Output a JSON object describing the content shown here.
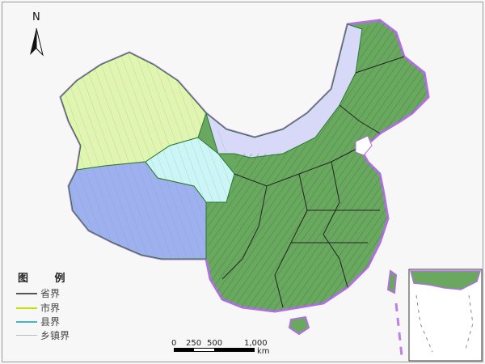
{
  "north_label": "N",
  "legend": {
    "title": "图 例",
    "items": [
      {
        "label": "省界",
        "color": "#555555"
      },
      {
        "label": "市界",
        "color": "#c8e000"
      },
      {
        "label": "县界",
        "color": "#40b8c8"
      },
      {
        "label": "乡镇界",
        "color": "#bbbbbb"
      }
    ]
  },
  "scale_bar": {
    "ticks": [
      "0",
      "250",
      "500",
      "1,000"
    ],
    "unit": "km"
  },
  "colors": {
    "xinjiang": "#e2f5b0",
    "tibet": "#9fb0ee",
    "qinghai": "#cdf5f5",
    "inner_mongolia": "#d8d8f8",
    "east": "#6aa860",
    "border_glow": "#b070e0"
  }
}
